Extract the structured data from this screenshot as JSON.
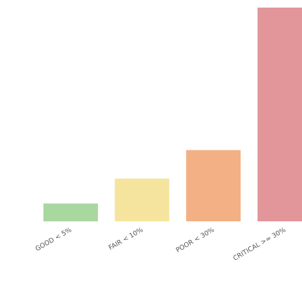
{
  "chart_data": {
    "type": "bar",
    "categories": [
      "GOOD < 5%",
      "FAIR < 10%",
      "POOR < 30%",
      "CRITICAL >= 30%"
    ],
    "values": [
      5,
      12,
      20,
      60
    ],
    "colors": [
      "#a8d8a0",
      "#f5e49d",
      "#f3b084",
      "#e2969a"
    ],
    "ylim": [
      0,
      60
    ],
    "grid": false,
    "legend": "none"
  }
}
